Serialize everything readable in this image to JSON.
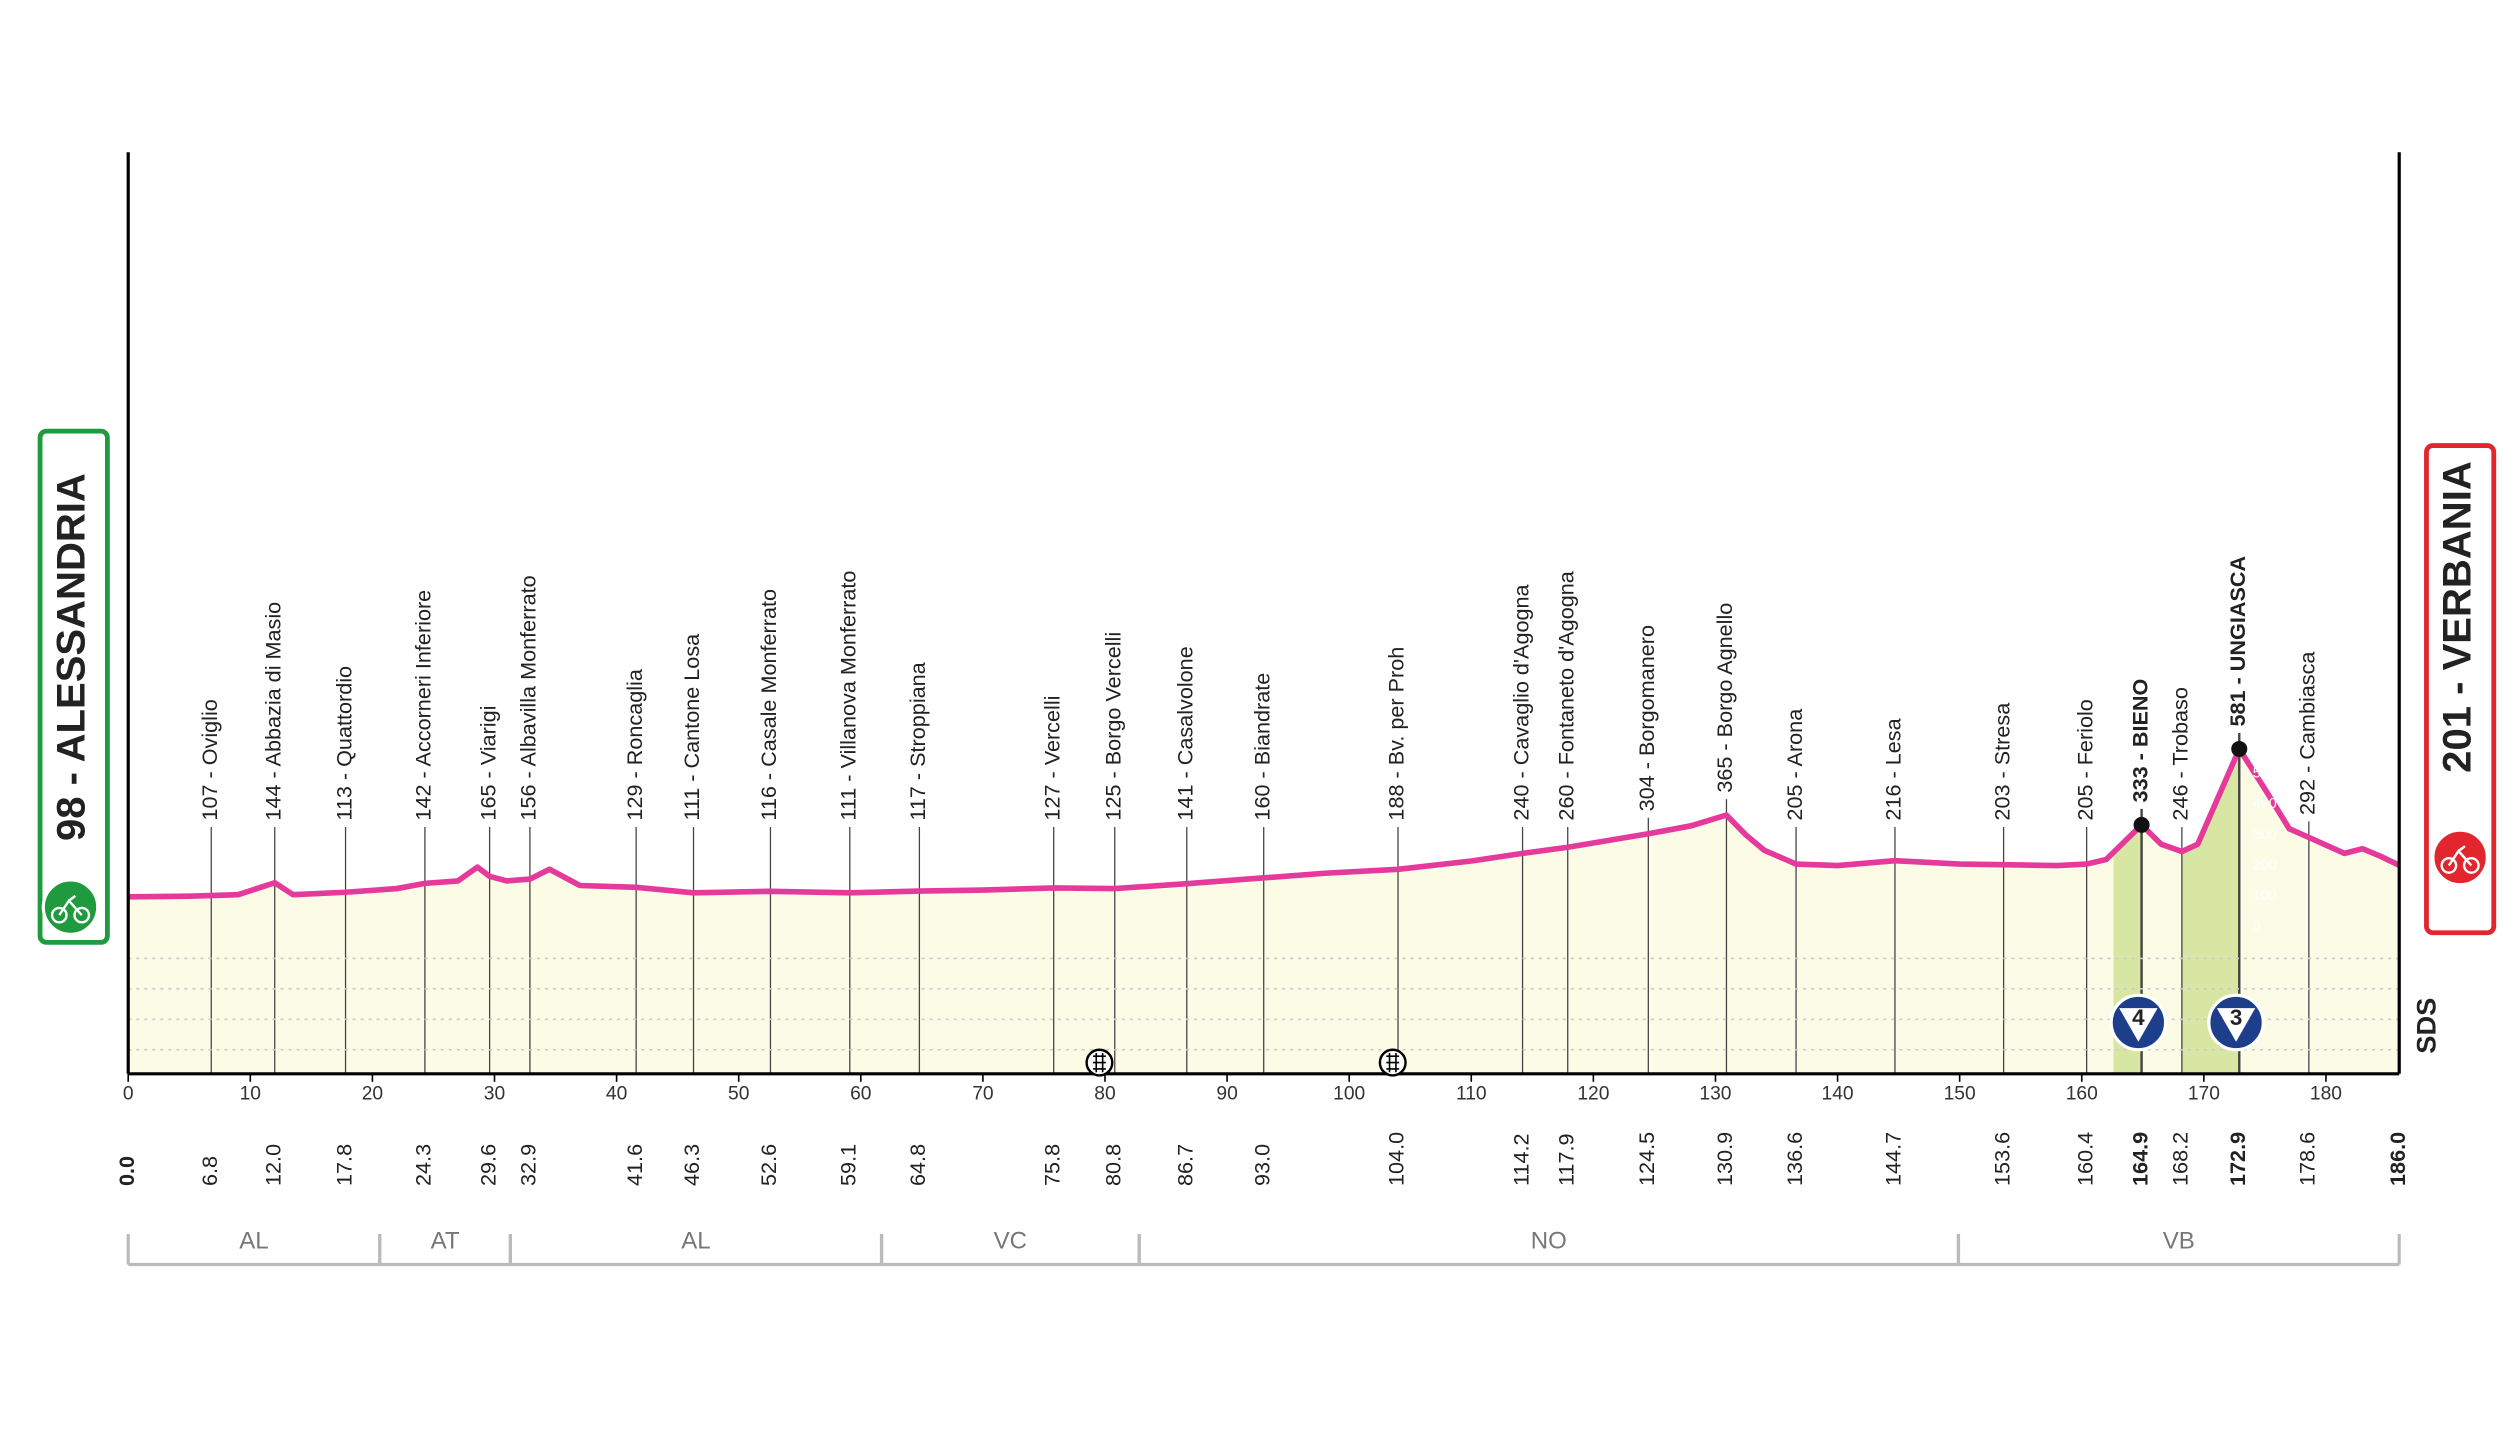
{
  "chart_data": {
    "type": "area",
    "start": {
      "label": "98 - ALESSANDRIA",
      "altitude": 98,
      "km": {
        "value": 0,
        "label": "0.0"
      }
    },
    "finish": {
      "label": "201 - VERBANIA",
      "altitude": 201,
      "km": {
        "value": 186,
        "label": "186.0"
      }
    },
    "xlim": [
      0,
      186
    ],
    "xticks": [
      0,
      10,
      20,
      30,
      40,
      50,
      60,
      70,
      80,
      90,
      100,
      110,
      120,
      130,
      140,
      150,
      160,
      170,
      180
    ],
    "ylim": [
      -480,
      2530
    ],
    "yticks": [
      0,
      100,
      200,
      300,
      400,
      500
    ],
    "series": [
      {
        "color": "#e5399b",
        "fill": "#fbfbe6",
        "x": [
          0,
          5,
          9,
          12,
          13.5,
          17.8,
          22,
          24.3,
          27,
          28.6,
          29.6,
          31,
          32.9,
          34.5,
          37,
          41.6,
          46.3,
          52.6,
          59.1,
          64.8,
          70,
          75.8,
          80.8,
          86.7,
          93,
          98,
          104,
          110,
          114.2,
          117.9,
          124.5,
          128,
          130.9,
          132.5,
          134,
          136.6,
          140,
          144.7,
          150,
          153.6,
          158,
          160.4,
          162,
          164.9,
          166.5,
          168.2,
          169.5,
          172.9,
          175,
          177,
          178.6,
          181.5,
          183,
          184.5,
          186
        ],
        "values": [
          98,
          100,
          105,
          144,
          105,
          113,
          125,
          142,
          150,
          195,
          165,
          150,
          156,
          188,
          135,
          129,
          111,
          116,
          111,
          117,
          120,
          127,
          125,
          141,
          160,
          175,
          188,
          215,
          240,
          260,
          304,
          330,
          365,
          300,
          250,
          205,
          200,
          216,
          205,
          203,
          200,
          205,
          220,
          333,
          270,
          246,
          270,
          581,
          450,
          320,
          292,
          240,
          255,
          230,
          201
        ]
      }
    ],
    "waypoints": [
      {
        "label": "107 - Oviglio",
        "altitude": 107,
        "km": 6.8
      },
      {
        "label": "144 - Abbazia di Masio",
        "altitude": 144,
        "km": {
          "value": 12,
          "label": "12.0"
        }
      },
      {
        "label": "113 - Quattordio",
        "altitude": 113,
        "km": 17.8
      },
      {
        "label": "142 - Accorneri Inferiore",
        "altitude": 142,
        "km": 24.3
      },
      {
        "label": "165 - Viarigi",
        "altitude": 165,
        "km": 29.6
      },
      {
        "label": "156 - Albavilla Monferrato",
        "altitude": 156,
        "km": 32.9
      },
      {
        "label": "129 - Roncaglia",
        "altitude": 129,
        "km": 41.6
      },
      {
        "label": "111 - Cantone Losa",
        "altitude": 111,
        "km": 46.3
      },
      {
        "label": "116 - Casale Monferrato",
        "altitude": 116,
        "km": 52.6
      },
      {
        "label": "111 - Villanova Monferrato",
        "altitude": 111,
        "km": 59.1
      },
      {
        "label": "117 - Stroppiana",
        "altitude": 117,
        "km": 64.8
      },
      {
        "label": "127 - Vercelli",
        "altitude": 127,
        "km": 75.8
      },
      {
        "label": "125 - Borgo Vercelli",
        "altitude": 125,
        "km": 80.8
      },
      {
        "label": "141 - Casalvolone",
        "altitude": 141,
        "km": 86.7
      },
      {
        "label": "160 - Biandrate",
        "altitude": 160,
        "km": {
          "value": 93,
          "label": "93.0"
        }
      },
      {
        "label": "188 - Bv. per Proh",
        "altitude": 188,
        "km": {
          "value": 104,
          "label": "104.0"
        }
      },
      {
        "label": "240 - Cavaglio d'Agogna",
        "altitude": 240,
        "km": 114.2
      },
      {
        "label": "260 - Fontaneto d'Agogna",
        "altitude": 260,
        "km": 117.9
      },
      {
        "label": "304 - Borgomanero",
        "altitude": 304,
        "km": 124.5
      },
      {
        "label": "365 - Borgo Agnello",
        "altitude": 365,
        "km": 130.9
      },
      {
        "label": "205 - Arona",
        "altitude": 205,
        "km": 136.6
      },
      {
        "label": "216 - Lesa",
        "altitude": 216,
        "km": 144.7
      },
      {
        "label": "203 - Stresa",
        "altitude": 203,
        "km": 153.6
      },
      {
        "label": "205 - Feriolo",
        "altitude": 205,
        "km": 160.4
      },
      {
        "label": "333 - BIENO",
        "altitude": 333,
        "km": 164.9,
        "bold": true
      },
      {
        "label": "246 - Trobaso",
        "altitude": 246,
        "km": 168.2
      },
      {
        "label": "581 - UNGIASCA",
        "altitude": 581,
        "km": 172.9,
        "bold": true
      },
      {
        "label": "292 - Cambiasca",
        "altitude": 292,
        "km": 178.6
      }
    ],
    "climbs": [
      {
        "category": 4,
        "km_start": 162.6,
        "km_end": 164.9,
        "color": "#d8e6a3"
      },
      {
        "category": 3,
        "km_start": 168.2,
        "km_end": 172.9,
        "color": "#d8e6a3"
      }
    ],
    "regions": [
      {
        "label": "AL",
        "km_start": 0,
        "km_end": 20.6
      },
      {
        "label": "AT",
        "km_start": 20.6,
        "km_end": 31.3
      },
      {
        "label": "AL",
        "km_start": 31.3,
        "km_end": 61.7
      },
      {
        "label": "VC",
        "km_start": 61.7,
        "km_end": 82.8
      },
      {
        "label": "NO",
        "km_start": 82.8,
        "km_end": 149.9
      },
      {
        "label": "VB",
        "km_start": 149.9,
        "km_end": 186
      }
    ],
    "logo": "SDS"
  }
}
